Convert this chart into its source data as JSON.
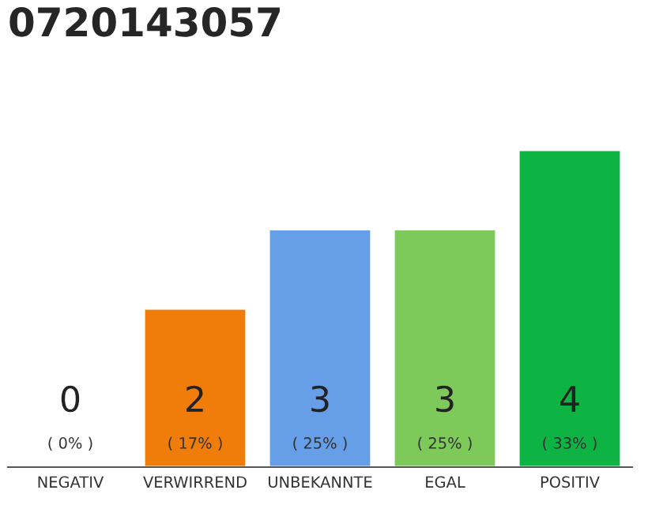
{
  "chart_data": {
    "type": "bar",
    "title": "0720143057",
    "categories": [
      "NEGATIV",
      "VERWIRREND",
      "UNBEKANNTE",
      "EGAL",
      "POSITIV"
    ],
    "values": [
      0,
      2,
      3,
      3,
      4
    ],
    "colors": [
      null,
      "#f07d0a",
      "#669ee8",
      "#7dc95a",
      "#0db443"
    ],
    "value_labels": [
      "0\n( 0% )",
      "2\n( 17% )",
      "3\n( 25% )",
      "3\n( 25% )",
      "4\n( 33% )"
    ],
    "ylim": [
      0,
      4
    ],
    "grid": false,
    "legend": false
  }
}
